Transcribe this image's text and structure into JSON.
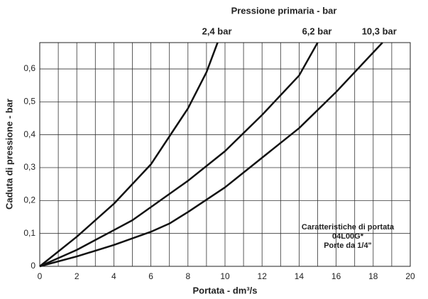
{
  "chart_data": {
    "type": "line",
    "title": "Pressione primaria - bar",
    "x_label": "Portata - dm³/s",
    "y_label": "Caduta di pressione - bar",
    "annotation": [
      "Caratteristiche di portata",
      "04L00G*",
      "Porte da 1/4\""
    ],
    "xlim": [
      0,
      20
    ],
    "ylim": [
      0,
      0.68
    ],
    "xticks": [
      0,
      2,
      4,
      6,
      8,
      10,
      12,
      14,
      16,
      18,
      20
    ],
    "xminor": [
      1,
      3,
      5,
      7,
      9,
      11,
      13,
      15,
      17,
      19
    ],
    "yticks": [
      0,
      {
        "value": 0.1,
        "label": "0,1"
      },
      {
        "value": 0.2,
        "label": "0,2"
      },
      {
        "value": 0.3,
        "label": "0,3"
      },
      {
        "value": 0.4,
        "label": "0,4"
      },
      {
        "value": 0.5,
        "label": "0,5"
      },
      {
        "value": 0.6,
        "label": "0,6"
      }
    ],
    "grid": true,
    "series": [
      {
        "name": "2,4 bar",
        "color": "#111111",
        "x": [
          0,
          2,
          4,
          6,
          8,
          9,
          9.6
        ],
        "values": [
          0,
          0.09,
          0.19,
          0.31,
          0.48,
          0.59,
          0.68
        ]
      },
      {
        "name": "6,2 bar",
        "color": "#111111",
        "x": [
          0,
          2,
          4,
          5,
          6,
          8,
          10,
          12,
          14,
          15
        ],
        "values": [
          0,
          0.05,
          0.11,
          0.14,
          0.18,
          0.26,
          0.35,
          0.46,
          0.58,
          0.68
        ]
      },
      {
        "name": "10,3 bar",
        "color": "#111111",
        "x": [
          0,
          2,
          4,
          6,
          7,
          8,
          10,
          12,
          14,
          16,
          17,
          18.5
        ],
        "values": [
          0,
          0.03,
          0.065,
          0.105,
          0.13,
          0.165,
          0.24,
          0.33,
          0.42,
          0.53,
          0.59,
          0.68
        ]
      }
    ]
  }
}
